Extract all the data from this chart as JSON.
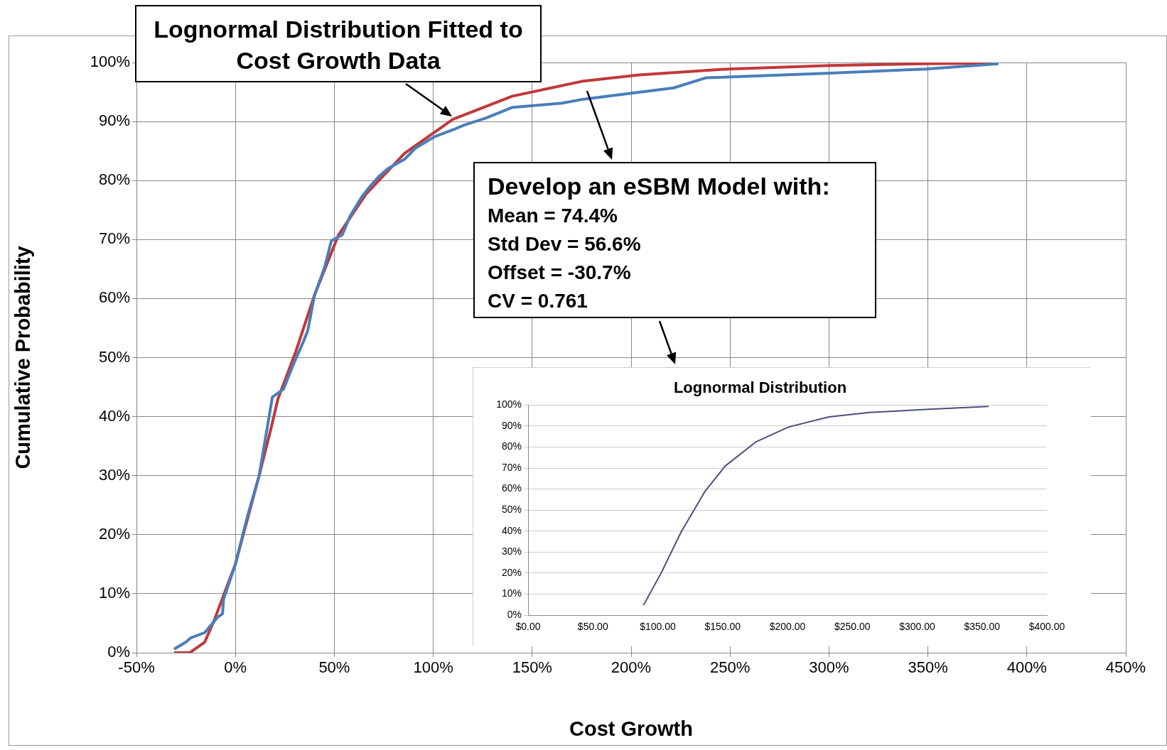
{
  "chart_data": [
    {
      "type": "line",
      "xlabel": "Cost Growth",
      "ylabel": "Cumulative Probability",
      "grid": true,
      "marker": "none",
      "xlim": [
        -50,
        450
      ],
      "ylim": [
        0,
        100
      ],
      "xticks": [
        {
          "value": -50,
          "label": "-50%"
        },
        {
          "value": 0,
          "label": "0%"
        },
        {
          "value": 50,
          "label": "50%"
        },
        {
          "value": 100,
          "label": "100%"
        },
        {
          "value": 150,
          "label": "150%"
        },
        {
          "value": 200,
          "label": "200%"
        },
        {
          "value": 250,
          "label": "250%"
        },
        {
          "value": 300,
          "label": "300%"
        },
        {
          "value": 350,
          "label": "350%"
        },
        {
          "value": 400,
          "label": "400%"
        },
        {
          "value": 450,
          "label": "450%"
        }
      ],
      "yticks": [
        {
          "value": 0,
          "label": "0%"
        },
        {
          "value": 10,
          "label": "10%"
        },
        {
          "value": 20,
          "label": "20%"
        },
        {
          "value": 30,
          "label": "30%"
        },
        {
          "value": 40,
          "label": "40%"
        },
        {
          "value": 50,
          "label": "50%"
        },
        {
          "value": 60,
          "label": "60%"
        },
        {
          "value": 70,
          "label": "70%"
        },
        {
          "value": 80,
          "label": "80%"
        },
        {
          "value": 90,
          "label": "90%"
        },
        {
          "value": 100,
          "label": "100%"
        }
      ],
      "annotations": [
        "Lognormal Distribution Fitted to Cost Growth Data",
        "Develop an eSBM Model with:",
        "Mean = 74.4%",
        "Std Dev = 56.6%",
        "Offset = -30.7%",
        "CV = 0.761"
      ],
      "series": [
        {
          "color": "#4a7ebb",
          "x": [
            -31,
            -25,
            -22.6,
            -15.5,
            -9,
            -6.5,
            -6,
            0,
            6,
            12,
            18.7,
            24.4,
            29,
            34.5,
            36.6,
            40,
            45,
            48.5,
            54,
            58,
            64,
            68,
            72,
            77,
            85.5,
            91,
            100.5,
            110,
            115.6,
            126.7,
            140,
            165,
            174.5,
            198,
            221.5,
            237.7,
            300.5,
            349,
            385.6
          ],
          "values": [
            0.6,
            1.8,
            2.5,
            3.4,
            6,
            6.6,
            9,
            15,
            23,
            30,
            43.3,
            44.7,
            48.6,
            52.8,
            54.6,
            60.6,
            65.2,
            69.8,
            70.8,
            74,
            77.3,
            79,
            80.5,
            82,
            83.6,
            85.5,
            87.4,
            88.6,
            89.4,
            90.6,
            92.4,
            93.1,
            93.7,
            94.7,
            95.7,
            97.4,
            98.2,
            98.9,
            99.8
          ]
        },
        {
          "color": "#c0393b",
          "x": [
            -31,
            -23,
            -15.5,
            -10.8,
            -6,
            0,
            12,
            18,
            21.5,
            30.5,
            40,
            52,
            66,
            85.5,
            110,
            140,
            175,
            204,
            249,
            300.5,
            349,
            385.6
          ],
          "values": [
            0,
            0,
            1.8,
            5.4,
            9.7,
            15,
            30,
            38,
            43,
            51,
            60.6,
            70.7,
            77.7,
            84.6,
            90.4,
            94.3,
            96.8,
            97.9,
            98.9,
            99.5,
            99.8,
            99.9
          ]
        }
      ]
    },
    {
      "type": "line",
      "title": "Lognormal Distribution",
      "grid": "y",
      "marker": "none",
      "xlim": [
        0,
        400
      ],
      "ylim": [
        0,
        100
      ],
      "xticks": [
        {
          "value": 0,
          "label": "$0.00"
        },
        {
          "value": 50,
          "label": "$50.00"
        },
        {
          "value": 100,
          "label": "$100.00"
        },
        {
          "value": 150,
          "label": "$150.00"
        },
        {
          "value": 200,
          "label": "$200.00"
        },
        {
          "value": 250,
          "label": "$250.00"
        },
        {
          "value": 300,
          "label": "$300.00"
        },
        {
          "value": 350,
          "label": "$350.00"
        },
        {
          "value": 400,
          "label": "$400.00"
        }
      ],
      "yticks": [
        {
          "value": 0,
          "label": "0%"
        },
        {
          "value": 10,
          "label": "10%"
        },
        {
          "value": 20,
          "label": "20%"
        },
        {
          "value": 30,
          "label": "30%"
        },
        {
          "value": 40,
          "label": "40%"
        },
        {
          "value": 50,
          "label": "50%"
        },
        {
          "value": 60,
          "label": "60%"
        },
        {
          "value": 70,
          "label": "70%"
        },
        {
          "value": 80,
          "label": "80%"
        },
        {
          "value": 90,
          "label": "90%"
        },
        {
          "value": 100,
          "label": "100%"
        }
      ],
      "series": [
        {
          "color": "#4a4f7a",
          "x": [
            89,
            102.6,
            118,
            136.5,
            152,
            176,
            201,
            232,
            263,
            309,
            355
          ],
          "values": [
            4.7,
            20,
            39.6,
            59,
            71,
            82.6,
            89.6,
            94.4,
            96.5,
            98,
            99.4
          ]
        }
      ]
    }
  ]
}
